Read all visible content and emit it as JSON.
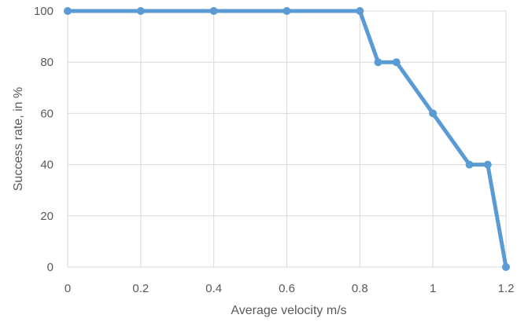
{
  "chart_data": {
    "type": "line",
    "title": "",
    "xlabel": "Average velocity m/s",
    "ylabel": "Success rate, in %",
    "xlim": [
      0,
      1.2
    ],
    "ylim": [
      0,
      100
    ],
    "x_ticks": [
      0,
      0.2,
      0.4,
      0.6,
      0.8,
      1,
      1.2
    ],
    "x_tick_labels": [
      "0",
      "0.2",
      "0.4",
      "0.6",
      "0.8",
      "1",
      "1.2"
    ],
    "y_ticks": [
      0,
      20,
      40,
      60,
      80,
      100
    ],
    "y_tick_labels": [
      "0",
      "20",
      "40",
      "60",
      "80",
      "100"
    ],
    "grid": true,
    "legend": "none",
    "series": [
      {
        "color": "#5B9BD5",
        "x": [
          0,
          0.2,
          0.4,
          0.6,
          0.8,
          0.85,
          0.9,
          1.0,
          1.1,
          1.15,
          1.2
        ],
        "y": [
          100,
          100,
          100,
          100,
          100,
          80,
          80,
          60,
          40,
          40,
          0
        ]
      }
    ],
    "colors": {
      "grid": "#D9D9D9",
      "text": "#595959"
    }
  }
}
